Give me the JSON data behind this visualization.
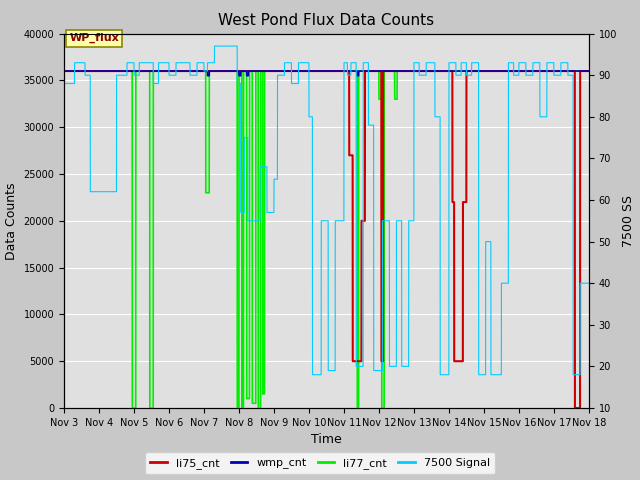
{
  "title": "West Pond Flux Data Counts",
  "xlabel": "Time",
  "ylabel_left": "Data Counts",
  "ylabel_right": "7500 SS",
  "ylim_left": [
    0,
    40000
  ],
  "ylim_right": [
    10,
    100
  ],
  "x_tick_labels": [
    "Nov 3",
    "Nov 4",
    "Nov 5",
    "Nov 6",
    "Nov 7",
    "Nov 8",
    "Nov 9",
    "Nov 10",
    "Nov 11",
    "Nov 12",
    "Nov 13",
    "Nov 14",
    "Nov 15",
    "Nov 16",
    "Nov 17",
    "Nov 18"
  ],
  "background_color": "#c8c8c8",
  "plot_bg_color": "#e0e0e0",
  "annotation_text": "WP_flux",
  "legend_labels": [
    "li75_cnt",
    "wmp_cnt",
    "li77_cnt",
    "7500 Signal"
  ],
  "signal_color": "#00ccff",
  "li77_color": "#00ee00",
  "li75_color": "#cc0000",
  "wmp_color": "#0000bb",
  "grid_color": "#ffffff",
  "title_fontsize": 11,
  "tick_fontsize": 7,
  "label_fontsize": 9
}
